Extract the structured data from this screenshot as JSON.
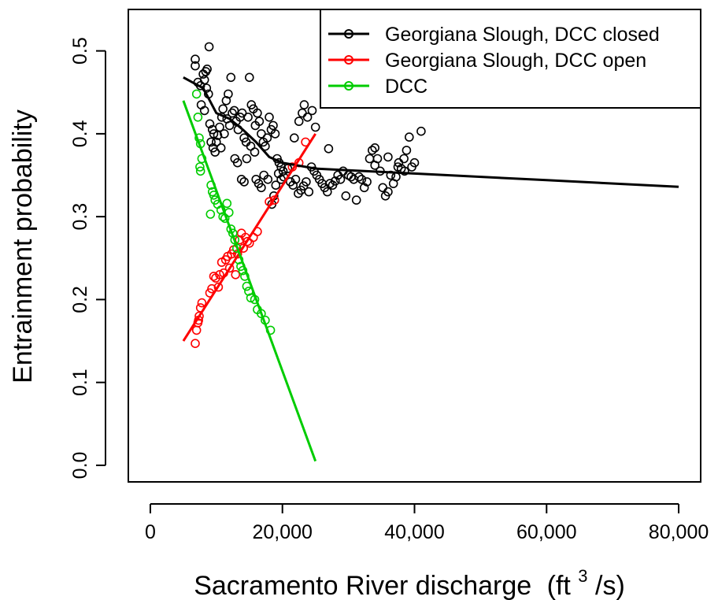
{
  "chart_data": {
    "type": "scatter",
    "xlabel": "Sacramento  River  discharge  (ft³/s)",
    "xlabel_main": "Sacramento  River  discharge",
    "xlabel_unit_open": "(ft",
    "xlabel_unit_sup": "3",
    "xlabel_unit_close": "/s)",
    "ylabel": "Entrainment probability",
    "xlim": [
      0,
      80000
    ],
    "ylim": [
      0,
      0.5
    ],
    "x_ticks": [
      0,
      20000,
      40000,
      60000,
      80000
    ],
    "x_tick_labels": [
      "0",
      "20,000",
      "40,000",
      "60,000",
      "80,000"
    ],
    "y_ticks": [
      0.0,
      0.1,
      0.2,
      0.3,
      0.4,
      0.5
    ],
    "y_tick_labels": [
      "0.0",
      "0.1",
      "0.2",
      "0.3",
      "0.4",
      "0.5"
    ],
    "grid": false,
    "legend_position": "top-right",
    "series": [
      {
        "name": "Georgiana Slough, DCC closed",
        "color": "#000000",
        "fit_line": [
          [
            5000,
            0.468
          ],
          [
            8000,
            0.455
          ],
          [
            9000,
            0.44
          ],
          [
            10000,
            0.425
          ],
          [
            12000,
            0.418
          ],
          [
            14000,
            0.405
          ],
          [
            16000,
            0.39
          ],
          [
            18000,
            0.372
          ],
          [
            20000,
            0.365
          ],
          [
            25000,
            0.358
          ],
          [
            30000,
            0.356
          ],
          [
            40000,
            0.352
          ],
          [
            60000,
            0.344
          ],
          [
            80000,
            0.336
          ]
        ],
        "points": [
          [
            6800,
            0.49
          ],
          [
            6800,
            0.482
          ],
          [
            7200,
            0.462
          ],
          [
            7600,
            0.458
          ],
          [
            8000,
            0.472
          ],
          [
            8200,
            0.465
          ],
          [
            8400,
            0.475
          ],
          [
            8600,
            0.478
          ],
          [
            8900,
            0.505
          ],
          [
            8800,
            0.448
          ],
          [
            8500,
            0.455
          ],
          [
            7700,
            0.435
          ],
          [
            8200,
            0.428
          ],
          [
            9000,
            0.412
          ],
          [
            9400,
            0.405
          ],
          [
            9600,
            0.4
          ],
          [
            9200,
            0.39
          ],
          [
            9500,
            0.383
          ],
          [
            9800,
            0.378
          ],
          [
            10200,
            0.398
          ],
          [
            10500,
            0.408
          ],
          [
            10800,
            0.42
          ],
          [
            11000,
            0.43
          ],
          [
            11500,
            0.44
          ],
          [
            11800,
            0.448
          ],
          [
            12200,
            0.468
          ],
          [
            11600,
            0.418
          ],
          [
            12000,
            0.41
          ],
          [
            12400,
            0.425
          ],
          [
            12700,
            0.428
          ],
          [
            13000,
            0.415
          ],
          [
            13300,
            0.405
          ],
          [
            13600,
            0.42
          ],
          [
            13900,
            0.425
          ],
          [
            14200,
            0.395
          ],
          [
            14500,
            0.39
          ],
          [
            14800,
            0.42
          ],
          [
            15000,
            0.468
          ],
          [
            15300,
            0.435
          ],
          [
            15600,
            0.43
          ],
          [
            15900,
            0.41
          ],
          [
            16200,
            0.425
          ],
          [
            16500,
            0.415
          ],
          [
            16800,
            0.4
          ],
          [
            17100,
            0.39
          ],
          [
            17400,
            0.385
          ],
          [
            17700,
            0.395
          ],
          [
            18000,
            0.42
          ],
          [
            18300,
            0.405
          ],
          [
            18600,
            0.41
          ],
          [
            18900,
            0.4
          ],
          [
            19200,
            0.37
          ],
          [
            19500,
            0.365
          ],
          [
            19800,
            0.36
          ],
          [
            20100,
            0.355
          ],
          [
            10000,
            0.39
          ],
          [
            10700,
            0.383
          ],
          [
            11200,
            0.4
          ],
          [
            12800,
            0.37
          ],
          [
            13200,
            0.365
          ],
          [
            13800,
            0.345
          ],
          [
            14200,
            0.342
          ],
          [
            14600,
            0.37
          ],
          [
            15200,
            0.385
          ],
          [
            15800,
            0.378
          ],
          [
            16000,
            0.345
          ],
          [
            16400,
            0.34
          ],
          [
            16800,
            0.335
          ],
          [
            17200,
            0.35
          ],
          [
            17800,
            0.345
          ],
          [
            18400,
            0.315
          ],
          [
            18700,
            0.325
          ],
          [
            19000,
            0.338
          ],
          [
            19400,
            0.352
          ],
          [
            19800,
            0.345
          ],
          [
            20200,
            0.348
          ],
          [
            20800,
            0.358
          ],
          [
            21200,
            0.342
          ],
          [
            21600,
            0.338
          ],
          [
            22000,
            0.345
          ],
          [
            22400,
            0.328
          ],
          [
            22800,
            0.332
          ],
          [
            23200,
            0.337
          ],
          [
            23600,
            0.342
          ],
          [
            24000,
            0.33
          ],
          [
            24400,
            0.36
          ],
          [
            24800,
            0.355
          ],
          [
            25200,
            0.35
          ],
          [
            25600,
            0.345
          ],
          [
            26000,
            0.34
          ],
          [
            26400,
            0.335
          ],
          [
            26800,
            0.33
          ],
          [
            27200,
            0.34
          ],
          [
            27600,
            0.338
          ],
          [
            28000,
            0.343
          ],
          [
            28400,
            0.35
          ],
          [
            28800,
            0.345
          ],
          [
            29200,
            0.355
          ],
          [
            29600,
            0.325
          ],
          [
            30000,
            0.35
          ],
          [
            30400,
            0.348
          ],
          [
            30800,
            0.345
          ],
          [
            31200,
            0.32
          ],
          [
            31600,
            0.348
          ],
          [
            32000,
            0.345
          ],
          [
            32400,
            0.335
          ],
          [
            32800,
            0.342
          ],
          [
            33200,
            0.37
          ],
          [
            33600,
            0.38
          ],
          [
            34000,
            0.362
          ],
          [
            34400,
            0.37
          ],
          [
            34800,
            0.355
          ],
          [
            35200,
            0.335
          ],
          [
            35600,
            0.325
          ],
          [
            36000,
            0.33
          ],
          [
            36400,
            0.35
          ],
          [
            36800,
            0.34
          ],
          [
            37200,
            0.348
          ],
          [
            37600,
            0.365
          ],
          [
            38000,
            0.358
          ],
          [
            38400,
            0.37
          ],
          [
            38800,
            0.38
          ],
          [
            39200,
            0.396
          ],
          [
            39600,
            0.36
          ],
          [
            40000,
            0.365
          ],
          [
            41000,
            0.403
          ],
          [
            21800,
            0.395
          ],
          [
            22500,
            0.415
          ],
          [
            23000,
            0.425
          ],
          [
            23300,
            0.435
          ],
          [
            24500,
            0.428
          ],
          [
            23800,
            0.42
          ],
          [
            25000,
            0.408
          ],
          [
            27000,
            0.382
          ],
          [
            34000,
            0.383
          ],
          [
            36000,
            0.372
          ],
          [
            37500,
            0.36
          ],
          [
            38500,
            0.355
          ]
        ]
      },
      {
        "name": "Georgiana Slough, DCC open",
        "color": "#ff0000",
        "fit_line": [
          [
            5000,
            0.15
          ],
          [
            25000,
            0.4
          ]
        ],
        "points": [
          [
            6800,
            0.147
          ],
          [
            7000,
            0.163
          ],
          [
            7200,
            0.172
          ],
          [
            7400,
            0.18
          ],
          [
            7600,
            0.19
          ],
          [
            7800,
            0.196
          ],
          [
            7300,
            0.175
          ],
          [
            9000,
            0.208
          ],
          [
            9300,
            0.213
          ],
          [
            9600,
            0.228
          ],
          [
            9900,
            0.226
          ],
          [
            10300,
            0.215
          ],
          [
            10500,
            0.23
          ],
          [
            10800,
            0.245
          ],
          [
            11100,
            0.232
          ],
          [
            11400,
            0.248
          ],
          [
            11700,
            0.252
          ],
          [
            12000,
            0.238
          ],
          [
            12300,
            0.255
          ],
          [
            12600,
            0.26
          ],
          [
            12900,
            0.23
          ],
          [
            13200,
            0.255
          ],
          [
            13500,
            0.272
          ],
          [
            13800,
            0.28
          ],
          [
            14100,
            0.262
          ],
          [
            14400,
            0.275
          ],
          [
            14700,
            0.27
          ],
          [
            15000,
            0.268
          ],
          [
            15600,
            0.275
          ],
          [
            16200,
            0.282
          ],
          [
            18000,
            0.318
          ],
          [
            18800,
            0.32
          ],
          [
            21500,
            0.36
          ],
          [
            22500,
            0.365
          ],
          [
            23500,
            0.39
          ]
        ]
      },
      {
        "name": "DCC",
        "color": "#00cc00",
        "fit_line": [
          [
            5000,
            0.44
          ],
          [
            25000,
            0.005
          ]
        ],
        "points": [
          [
            7000,
            0.448
          ],
          [
            7200,
            0.42
          ],
          [
            7400,
            0.395
          ],
          [
            7600,
            0.388
          ],
          [
            7800,
            0.37
          ],
          [
            7600,
            0.355
          ],
          [
            7500,
            0.36
          ],
          [
            9200,
            0.338
          ],
          [
            9400,
            0.33
          ],
          [
            9600,
            0.326
          ],
          [
            9800,
            0.32
          ],
          [
            10200,
            0.315
          ],
          [
            10700,
            0.308
          ],
          [
            11000,
            0.3
          ],
          [
            11300,
            0.298
          ],
          [
            11600,
            0.316
          ],
          [
            11900,
            0.305
          ],
          [
            12200,
            0.285
          ],
          [
            12500,
            0.28
          ],
          [
            12800,
            0.272
          ],
          [
            13100,
            0.262
          ],
          [
            13400,
            0.248
          ],
          [
            13700,
            0.24
          ],
          [
            14000,
            0.235
          ],
          [
            14300,
            0.228
          ],
          [
            14600,
            0.216
          ],
          [
            14900,
            0.21
          ],
          [
            15200,
            0.202
          ],
          [
            15800,
            0.2
          ],
          [
            16200,
            0.188
          ],
          [
            16800,
            0.183
          ],
          [
            17400,
            0.175
          ],
          [
            18200,
            0.163
          ],
          [
            9100,
            0.303
          ]
        ]
      }
    ]
  }
}
